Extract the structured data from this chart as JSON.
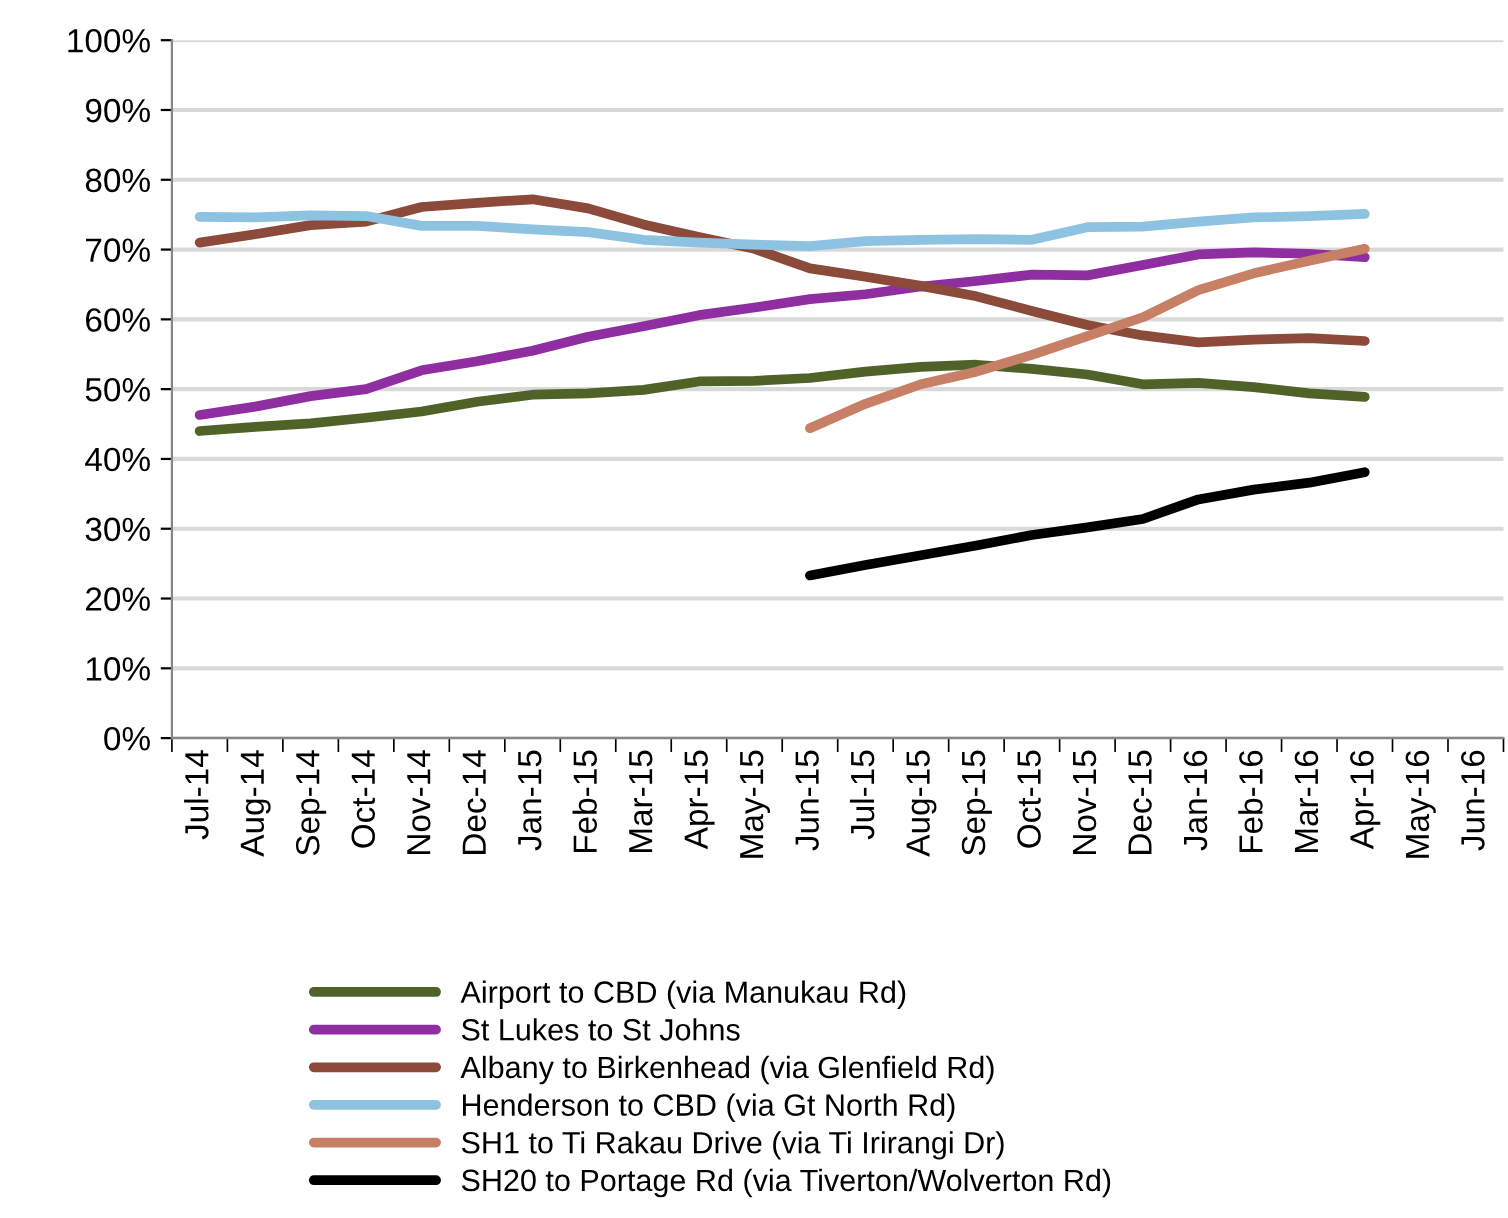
{
  "chart_data": {
    "type": "line",
    "categories": [
      "Jul-14",
      "Aug-14",
      "Sep-14",
      "Oct-14",
      "Nov-14",
      "Dec-14",
      "Jan-15",
      "Feb-15",
      "Mar-15",
      "Apr-15",
      "May-15",
      "Jun-15",
      "Jul-15",
      "Aug-15",
      "Sep-15",
      "Oct-15",
      "Nov-15",
      "Dec-15",
      "Jan-16",
      "Feb-16",
      "Mar-16",
      "Apr-16",
      "May-16",
      "Jun-16"
    ],
    "series": [
      {
        "name": "Airport to CBD (via Manukau Rd)",
        "color": "#4f6228",
        "values": [
          44,
          44.6,
          45.1,
          45.9,
          46.8,
          48.2,
          49.2,
          49.4,
          49.9,
          51.1,
          51.2,
          51.6,
          52.5,
          53.2,
          53.5,
          52.9,
          52.1,
          50.7,
          50.9,
          50.3,
          49.4,
          48.9,
          null,
          null
        ]
      },
      {
        "name": "St Lukes to St Johns",
        "color": "#8e2ea0",
        "values": [
          46.3,
          47.5,
          49,
          50,
          52.7,
          54,
          55.5,
          57.5,
          59,
          60.6,
          61.7,
          62.9,
          63.6,
          64.7,
          65.5,
          66.4,
          66.3,
          67.8,
          69.3,
          69.6,
          69.4,
          68.9,
          null,
          null
        ]
      },
      {
        "name": "Albany to Birkenhead (via Glenfield Rd)",
        "color": "#8b4a3a",
        "values": [
          71,
          72.2,
          73.5,
          74,
          76.1,
          76.7,
          77.2,
          75.9,
          73.6,
          71.8,
          70.1,
          67.3,
          66.1,
          64.8,
          63.3,
          61.2,
          59.2,
          57.7,
          56.7,
          57.1,
          57.3,
          56.9,
          null,
          null
        ]
      },
      {
        "name": "Henderson to CBD (via Gt North Rd)",
        "color": "#8dc3e0",
        "values": [
          74.7,
          74.6,
          74.9,
          74.8,
          73.4,
          73.4,
          72.9,
          72.5,
          71.4,
          71,
          70.7,
          70.5,
          71.2,
          71.4,
          71.5,
          71.4,
          73.2,
          73.3,
          74,
          74.6,
          74.8,
          75.1,
          null,
          null
        ]
      },
      {
        "name": "SH1 to Ti Rakau Drive (via Ti Irirangi Dr)",
        "color": "#c77f66",
        "values": [
          null,
          null,
          null,
          null,
          null,
          null,
          null,
          null,
          null,
          null,
          null,
          44.4,
          47.9,
          50.7,
          52.5,
          54.9,
          57.6,
          60.3,
          64.2,
          66.6,
          68.4,
          70.1,
          null,
          null
        ]
      },
      {
        "name": "SH20 to Portage Rd (via Tiverton/Wolverton Rd)",
        "color": "#000000",
        "values": [
          null,
          null,
          null,
          null,
          null,
          null,
          null,
          null,
          null,
          null,
          null,
          23.3,
          24.8,
          26.2,
          27.6,
          29.1,
          30.2,
          31.4,
          34.2,
          35.6,
          36.6,
          38.1,
          null,
          null
        ]
      }
    ],
    "ylim": [
      0,
      100
    ],
    "yticks": [
      {
        "value": 0,
        "label": "0%"
      },
      {
        "value": 10,
        "label": "10%"
      },
      {
        "value": 20,
        "label": "20%"
      },
      {
        "value": 30,
        "label": "30%"
      },
      {
        "value": 40,
        "label": "40%"
      },
      {
        "value": 50,
        "label": "50%"
      },
      {
        "value": 60,
        "label": "60%"
      },
      {
        "value": 70,
        "label": "70%"
      },
      {
        "value": 80,
        "label": "80%"
      },
      {
        "value": 90,
        "label": "90%"
      },
      {
        "value": 100,
        "label": "100%"
      }
    ],
    "grid": "y",
    "legend": "bottom",
    "marker": "none",
    "line_style": "solid"
  }
}
